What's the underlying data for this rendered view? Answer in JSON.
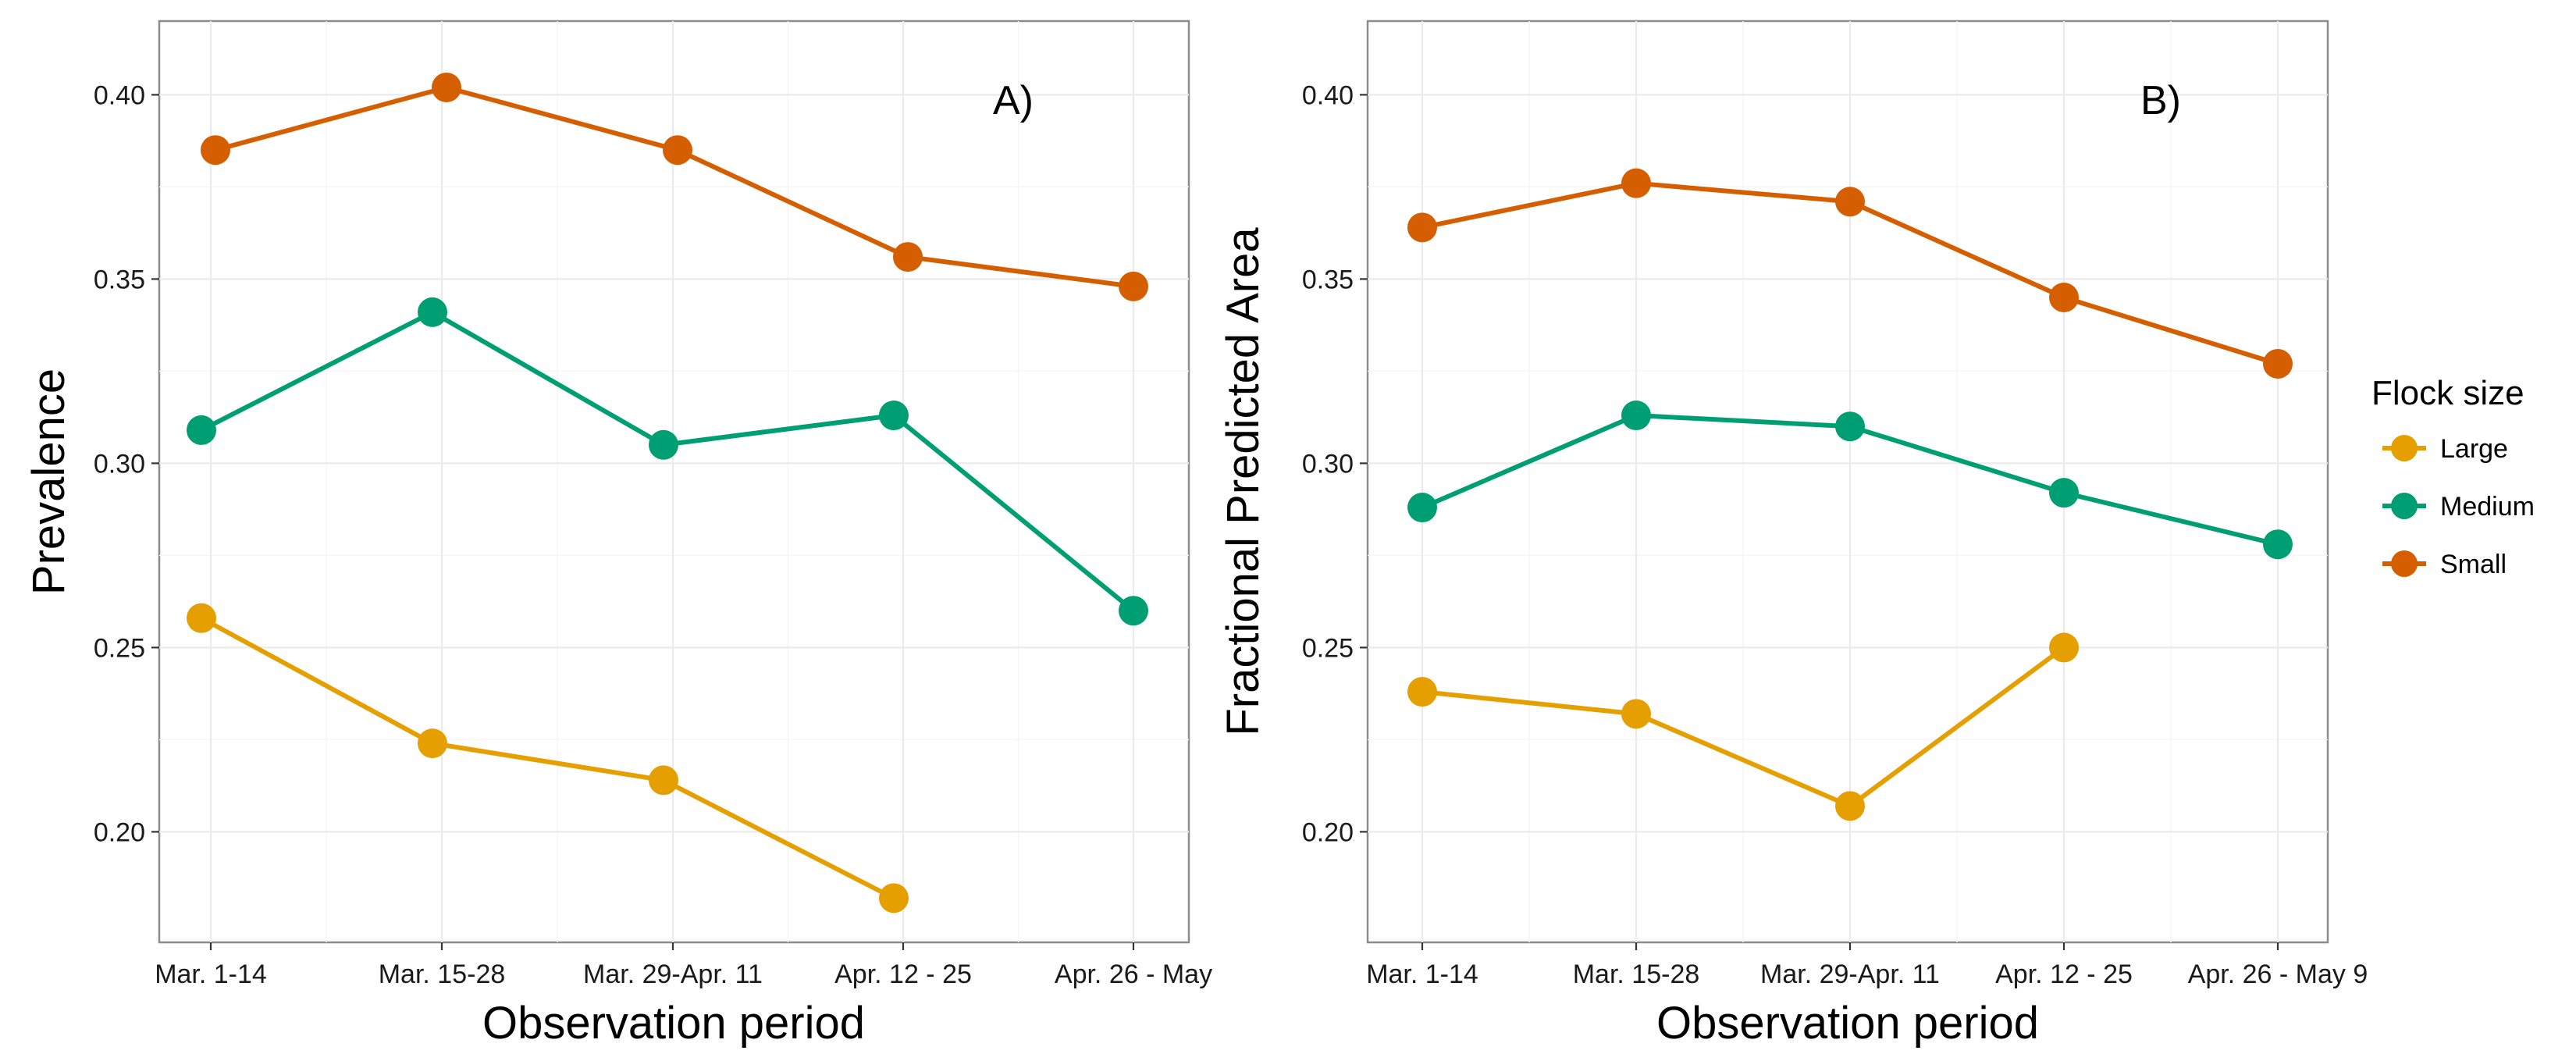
{
  "chart_data": [
    {
      "type": "line",
      "panel_label": "A)",
      "xlabel": "Observation period",
      "ylabel": "Prevalence",
      "categories": [
        "Mar. 1-14",
        "Mar. 15-28",
        "Mar. 29-Apr. 11",
        "Apr. 12 - 25",
        "Apr. 26 - May"
      ],
      "ylim": [
        0.17,
        0.42
      ],
      "yticks": [
        "0.20",
        "0.25",
        "0.30",
        "0.35",
        "0.40"
      ],
      "grid": true,
      "series": [
        {
          "name": "Large",
          "color": "#E69F00",
          "values": [
            0.258,
            0.224,
            0.214,
            0.182,
            null
          ]
        },
        {
          "name": "Medium",
          "color": "#009E73",
          "values": [
            0.309,
            0.341,
            0.305,
            0.313,
            0.26
          ]
        },
        {
          "name": "Small",
          "color": "#D55E00",
          "values": [
            0.385,
            0.402,
            0.385,
            0.356,
            0.348
          ]
        }
      ]
    },
    {
      "type": "line",
      "panel_label": "B)",
      "xlabel": "Observation period",
      "ylabel": "Fractional Predicted Area",
      "categories": [
        "Mar. 1-14",
        "Mar. 15-28",
        "Mar. 29-Apr. 11",
        "Apr. 12 - 25",
        "Apr. 26 - May 9"
      ],
      "ylim": [
        0.17,
        0.42
      ],
      "yticks": [
        "0.20",
        "0.25",
        "0.30",
        "0.35",
        "0.40"
      ],
      "grid": true,
      "series": [
        {
          "name": "Large",
          "color": "#E69F00",
          "values": [
            0.238,
            0.232,
            0.207,
            0.25,
            null
          ]
        },
        {
          "name": "Medium",
          "color": "#009E73",
          "values": [
            0.288,
            0.313,
            0.31,
            0.292,
            0.278
          ]
        },
        {
          "name": "Small",
          "color": "#D55E00",
          "values": [
            0.364,
            0.376,
            0.371,
            0.345,
            0.327
          ]
        }
      ]
    }
  ],
  "legend": {
    "title": "Flock size",
    "placement": "right",
    "items": [
      {
        "label": "Large",
        "color": "#E69F00"
      },
      {
        "label": "Medium",
        "color": "#009E73"
      },
      {
        "label": "Small",
        "color": "#D55E00"
      }
    ]
  }
}
